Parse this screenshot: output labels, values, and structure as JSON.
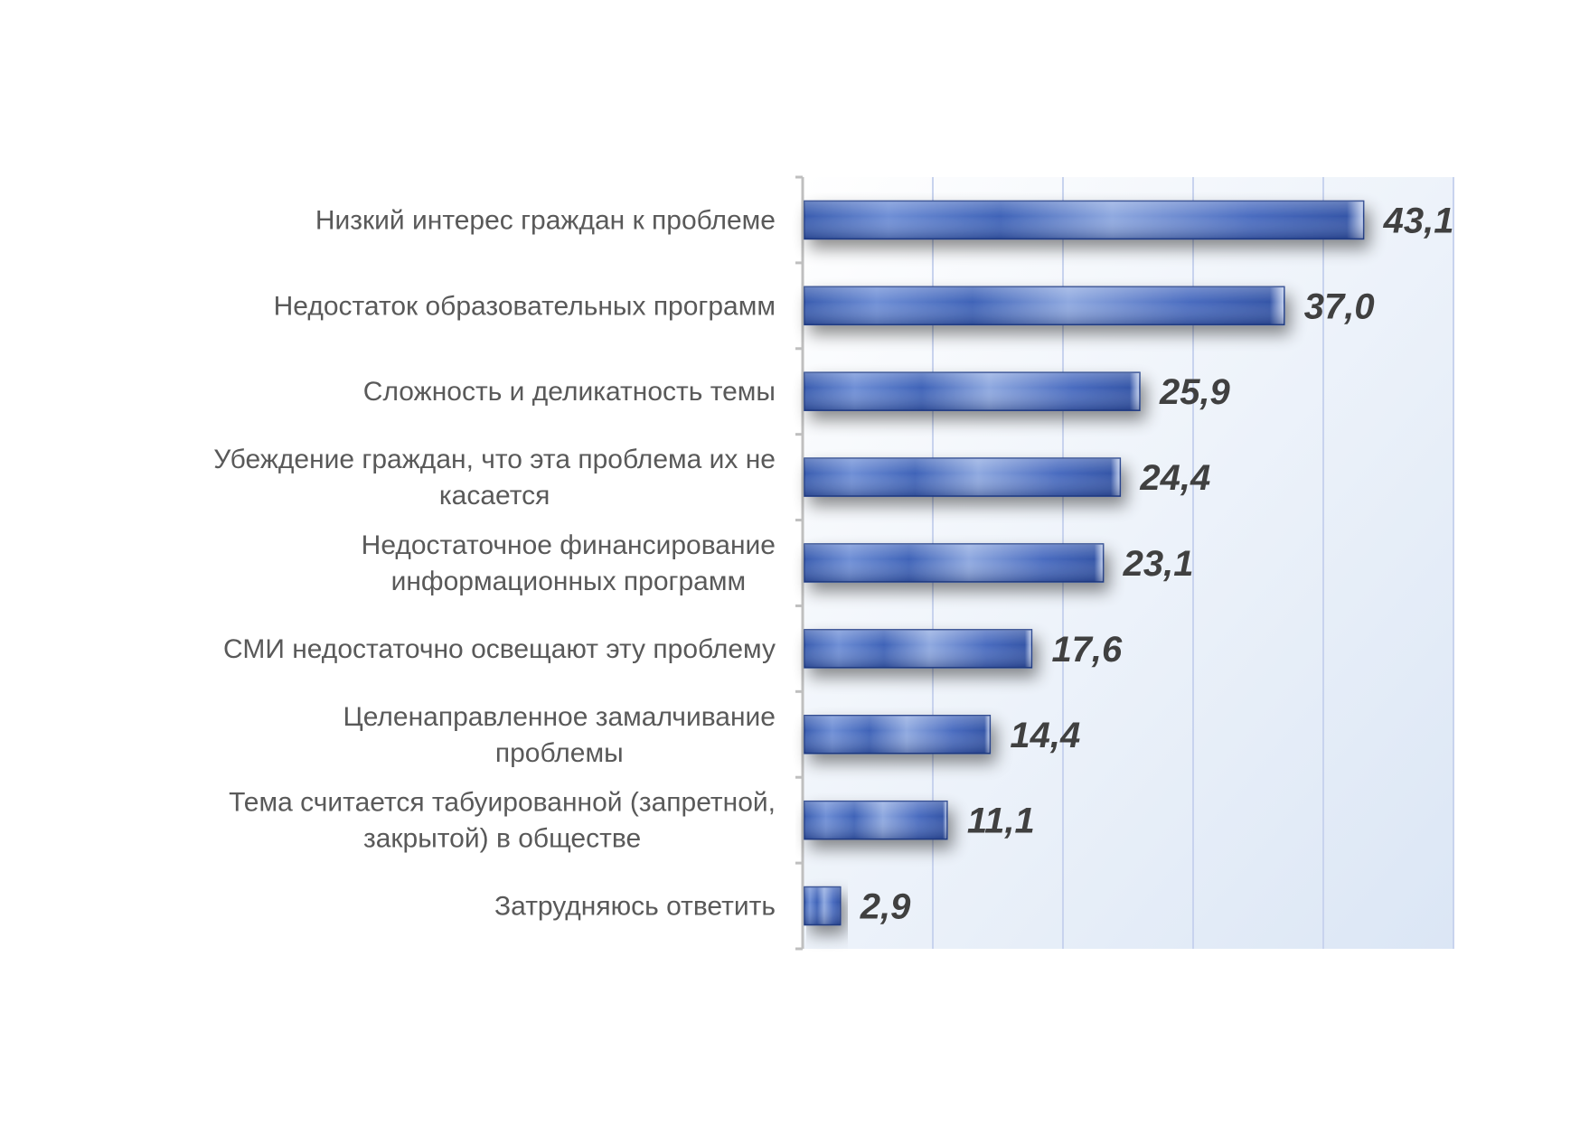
{
  "chart_data": {
    "type": "bar",
    "orientation": "horizontal",
    "title": "",
    "xlabel": "",
    "ylabel": "",
    "categories": [
      [
        "Низкий  интерес граждан  к проблеме"
      ],
      [
        "Недостаток образовательных  программ"
      ],
      [
        "Сложность и деликатность темы"
      ],
      [
        "Убеждение граждан, что эта проблема  их не",
        "касается"
      ],
      [
        "Недостаточное  финансирование",
        "информационных  программ"
      ],
      [
        "СМИ  недостаточно освещают эту проблему"
      ],
      [
        "Целенаправленное  замалчивание",
        "проблемы"
      ],
      [
        "Тема  считается табуированной  (запретной,",
        "закрытой) в обществе"
      ],
      [
        "Затрудняюсь ответить"
      ]
    ],
    "values": [
      43.1,
      37.0,
      25.9,
      24.4,
      23.1,
      17.6,
      14.4,
      11.1,
      2.9
    ],
    "value_labels": [
      "43,1",
      "37,0",
      "25,9",
      "24,4",
      "23,1",
      "17,6",
      "14,4",
      "11,1",
      "2,9"
    ],
    "xlim": [
      0,
      50
    ],
    "gridlines": true,
    "gridline_count": 5,
    "legend": "none",
    "colors": {
      "bar_dark": "#2f4f9e",
      "bar_light": "#8fa9e0",
      "plot_bg_left": "#ffffff",
      "plot_bg_right": "#dbe6f5",
      "grid": "#c8d3ee",
      "axis": "#bfbfbf",
      "category_text": "#595959",
      "value_text": "#404040"
    }
  }
}
